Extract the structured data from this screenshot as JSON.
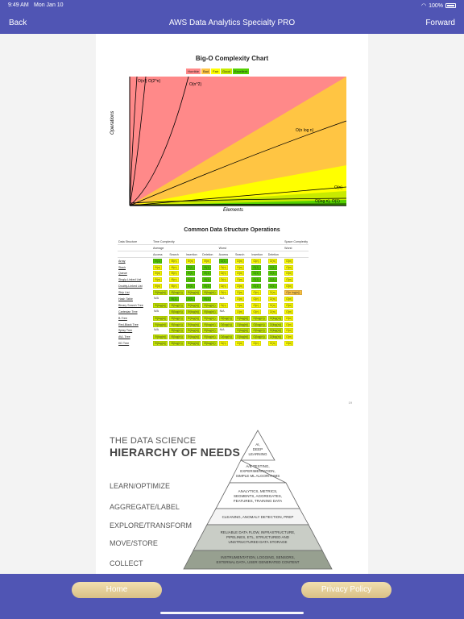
{
  "status_bar": {
    "time": "9:49 AM",
    "date": "Mon Jan 10",
    "battery": "100%"
  },
  "nav": {
    "back": "Back",
    "title": "AWS Data Analytics Specialty PRO",
    "forward": "Forward"
  },
  "big_o": {
    "title": "Big-O Complexity Chart",
    "legend": [
      "Horrible",
      "Bad",
      "Fair",
      "Good",
      "Excellent"
    ],
    "xlabel": "Elements",
    "ylabel": "Operations",
    "curves": [
      "O(n!)",
      "O(2^n)",
      "O(n^2)",
      "O(n log n)",
      "O(n)",
      "O(log n), O(1)"
    ]
  },
  "ds_table": {
    "title": "Common Data Structure Operations",
    "header1": [
      "Data Structure",
      "Time Complexity",
      "Space Complexity"
    ],
    "header2": [
      "Average",
      "Worst",
      "Worst"
    ],
    "header3": [
      "Access",
      "Search",
      "Insertion",
      "Deletion",
      "Access",
      "Search",
      "Insertion",
      "Deletion"
    ],
    "rows": [
      {
        "name": "Array",
        "cells": [
          [
            "Θ(1)",
            "excellent"
          ],
          [
            "Θ(n)",
            "fair"
          ],
          [
            "Θ(n)",
            "fair"
          ],
          [
            "Θ(n)",
            "fair"
          ],
          [
            "O(1)",
            "excellent"
          ],
          [
            "O(n)",
            "fair"
          ],
          [
            "O(n)",
            "fair"
          ],
          [
            "O(n)",
            "fair"
          ],
          [
            "O(n)",
            "fair"
          ]
        ]
      },
      {
        "name": "Stack",
        "cells": [
          [
            "Θ(n)",
            "fair"
          ],
          [
            "Θ(n)",
            "fair"
          ],
          [
            "Θ(1)",
            "excellent"
          ],
          [
            "Θ(1)",
            "excellent"
          ],
          [
            "O(n)",
            "fair"
          ],
          [
            "O(n)",
            "fair"
          ],
          [
            "O(1)",
            "excellent"
          ],
          [
            "O(1)",
            "excellent"
          ],
          [
            "O(n)",
            "fair"
          ]
        ]
      },
      {
        "name": "Queue",
        "cells": [
          [
            "Θ(n)",
            "fair"
          ],
          [
            "Θ(n)",
            "fair"
          ],
          [
            "Θ(1)",
            "excellent"
          ],
          [
            "Θ(1)",
            "excellent"
          ],
          [
            "O(n)",
            "fair"
          ],
          [
            "O(n)",
            "fair"
          ],
          [
            "O(1)",
            "excellent"
          ],
          [
            "O(1)",
            "excellent"
          ],
          [
            "O(n)",
            "fair"
          ]
        ]
      },
      {
        "name": "Singly-Linked List",
        "cells": [
          [
            "Θ(n)",
            "fair"
          ],
          [
            "Θ(n)",
            "fair"
          ],
          [
            "Θ(1)",
            "excellent"
          ],
          [
            "Θ(1)",
            "excellent"
          ],
          [
            "O(n)",
            "fair"
          ],
          [
            "O(n)",
            "fair"
          ],
          [
            "O(1)",
            "excellent"
          ],
          [
            "O(1)",
            "excellent"
          ],
          [
            "O(n)",
            "fair"
          ]
        ]
      },
      {
        "name": "Doubly-Linked List",
        "cells": [
          [
            "Θ(n)",
            "fair"
          ],
          [
            "Θ(n)",
            "fair"
          ],
          [
            "Θ(1)",
            "excellent"
          ],
          [
            "Θ(1)",
            "excellent"
          ],
          [
            "O(n)",
            "fair"
          ],
          [
            "O(n)",
            "fair"
          ],
          [
            "O(1)",
            "excellent"
          ],
          [
            "O(1)",
            "excellent"
          ],
          [
            "O(n)",
            "fair"
          ]
        ]
      },
      {
        "name": "Skip List",
        "cells": [
          [
            "Θ(log(n))",
            "good"
          ],
          [
            "Θ(log(n))",
            "good"
          ],
          [
            "Θ(log(n))",
            "good"
          ],
          [
            "Θ(log(n))",
            "good"
          ],
          [
            "O(n)",
            "fair"
          ],
          [
            "O(n)",
            "fair"
          ],
          [
            "O(n)",
            "fair"
          ],
          [
            "O(n)",
            "fair"
          ],
          [
            "O(n log(n))",
            "bad"
          ]
        ]
      },
      {
        "name": "Hash Table",
        "cells": [
          [
            "N/A",
            "na"
          ],
          [
            "Θ(1)",
            "excellent"
          ],
          [
            "Θ(1)",
            "excellent"
          ],
          [
            "Θ(1)",
            "excellent"
          ],
          [
            "N/A",
            "na"
          ],
          [
            "O(n)",
            "fair"
          ],
          [
            "O(n)",
            "fair"
          ],
          [
            "O(n)",
            "fair"
          ],
          [
            "O(n)",
            "fair"
          ]
        ]
      },
      {
        "name": "Binary Search Tree",
        "cells": [
          [
            "Θ(log(n))",
            "good"
          ],
          [
            "Θ(log(n))",
            "good"
          ],
          [
            "Θ(log(n))",
            "good"
          ],
          [
            "Θ(log(n))",
            "good"
          ],
          [
            "O(n)",
            "fair"
          ],
          [
            "O(n)",
            "fair"
          ],
          [
            "O(n)",
            "fair"
          ],
          [
            "O(n)",
            "fair"
          ],
          [
            "O(n)",
            "fair"
          ]
        ]
      },
      {
        "name": "Cartesian Tree",
        "cells": [
          [
            "N/A",
            "na"
          ],
          [
            "Θ(log(n))",
            "good"
          ],
          [
            "Θ(log(n))",
            "good"
          ],
          [
            "Θ(log(n))",
            "good"
          ],
          [
            "N/A",
            "na"
          ],
          [
            "O(n)",
            "fair"
          ],
          [
            "O(n)",
            "fair"
          ],
          [
            "O(n)",
            "fair"
          ],
          [
            "O(n)",
            "fair"
          ]
        ]
      },
      {
        "name": "B-Tree",
        "cells": [
          [
            "Θ(log(n))",
            "good"
          ],
          [
            "Θ(log(n))",
            "good"
          ],
          [
            "Θ(log(n))",
            "good"
          ],
          [
            "Θ(log(n))",
            "good"
          ],
          [
            "O(log(n))",
            "good"
          ],
          [
            "O(log(n))",
            "good"
          ],
          [
            "O(log(n))",
            "good"
          ],
          [
            "O(log(n))",
            "good"
          ],
          [
            "O(n)",
            "fair"
          ]
        ]
      },
      {
        "name": "Red-Black Tree",
        "cells": [
          [
            "Θ(log(n))",
            "good"
          ],
          [
            "Θ(log(n))",
            "good"
          ],
          [
            "Θ(log(n))",
            "good"
          ],
          [
            "Θ(log(n))",
            "good"
          ],
          [
            "O(log(n))",
            "good"
          ],
          [
            "O(log(n))",
            "good"
          ],
          [
            "O(log(n))",
            "good"
          ],
          [
            "O(log(n))",
            "good"
          ],
          [
            "O(n)",
            "fair"
          ]
        ]
      },
      {
        "name": "Splay Tree",
        "cells": [
          [
            "N/A",
            "na"
          ],
          [
            "Θ(log(n))",
            "good"
          ],
          [
            "Θ(log(n))",
            "good"
          ],
          [
            "Θ(log(n))",
            "good"
          ],
          [
            "N/A",
            "na"
          ],
          [
            "O(log(n))",
            "good"
          ],
          [
            "O(log(n))",
            "good"
          ],
          [
            "O(log(n))",
            "good"
          ],
          [
            "O(n)",
            "fair"
          ]
        ]
      },
      {
        "name": "AVL Tree",
        "cells": [
          [
            "Θ(log(n))",
            "good"
          ],
          [
            "Θ(log(n))",
            "good"
          ],
          [
            "Θ(log(n))",
            "good"
          ],
          [
            "Θ(log(n))",
            "good"
          ],
          [
            "O(log(n))",
            "good"
          ],
          [
            "O(log(n))",
            "good"
          ],
          [
            "O(log(n))",
            "good"
          ],
          [
            "O(log(n))",
            "good"
          ],
          [
            "O(n)",
            "fair"
          ]
        ]
      },
      {
        "name": "KD Tree",
        "cells": [
          [
            "Θ(log(n))",
            "good"
          ],
          [
            "Θ(log(n))",
            "good"
          ],
          [
            "Θ(log(n))",
            "good"
          ],
          [
            "Θ(log(n))",
            "good"
          ],
          [
            "O(n)",
            "fair"
          ],
          [
            "O(n)",
            "fair"
          ],
          [
            "O(n)",
            "fair"
          ],
          [
            "O(n)",
            "fair"
          ],
          [
            "O(n)",
            "fair"
          ]
        ]
      }
    ],
    "page_number": "19"
  },
  "hierarchy": {
    "title_line1": "THE DATA SCIENCE",
    "title_line2": "HIERARCHY OF NEEDS",
    "labels": [
      "LEARN/OPTIMIZE",
      "AGGREGATE/LABEL",
      "EXPLORE/TRANSFORM",
      "MOVE/STORE",
      "COLLECT"
    ],
    "levels": [
      [
        "AI,",
        "DEEP",
        "LEARNING"
      ],
      [
        "A/B TESTING,",
        "EXPERIMENTATION,",
        "SIMPLE ML ALGORITHMS"
      ],
      [
        "ANALYTICS, METRICS,",
        "SEGMENTS, AGGREGATES,",
        "FEATURES, TRAINING DATA"
      ],
      [
        "CLEANING, ANOMALY DETECTION, PREP"
      ],
      [
        "RELIABLE DATA FLOW, INFRASTRUCTURE,",
        "PIPELINES, ETL, STRUCTURED AND",
        "UNSTRUCTURED DATA STORAGE"
      ],
      [
        "INSTRUMENTATION, LOGGING, SENSORS,",
        "EXTERNAL DATA, USER GENERATED CONTENT"
      ]
    ]
  },
  "bottom": {
    "home": "Home",
    "privacy": "Privacy Policy"
  },
  "colors": {
    "bar": "#5055b4",
    "horrible": "#ff8989",
    "bad": "#ffc543",
    "fair": "#ffff00",
    "good": "#c8ea00",
    "excellent": "#53d000"
  }
}
